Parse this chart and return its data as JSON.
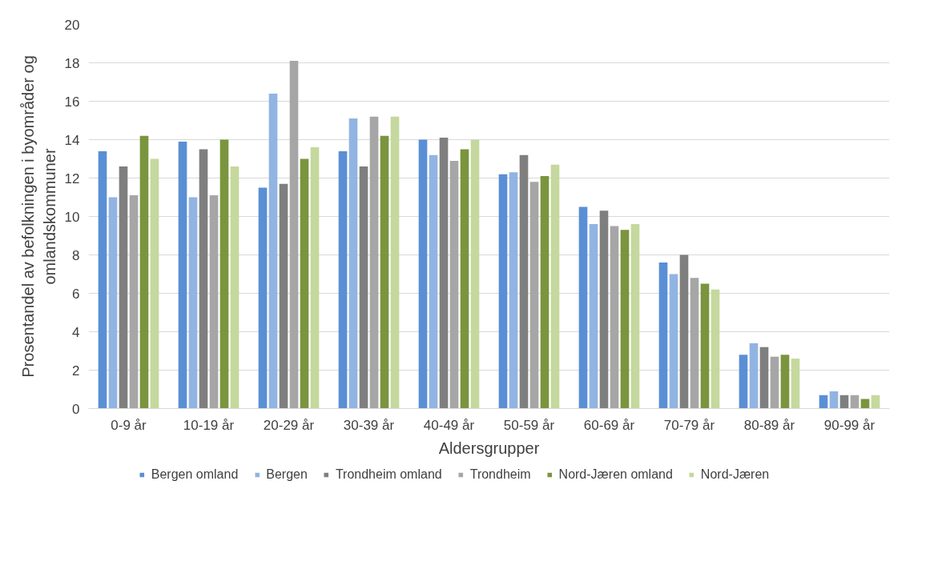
{
  "chart_data": {
    "type": "bar",
    "xlabel": "Aldersgrupper",
    "ylabel": "Prosentandel av befolkningen i byområder og omlandskommuner",
    "categories": [
      "0-9 år",
      "10-19 år",
      "20-29 år",
      "30-39 år",
      "40-49 år",
      "50-59 år",
      "60-69 år",
      "70-79 år",
      "80-89 år",
      "90-99 år"
    ],
    "series": [
      {
        "name": "Bergen omland",
        "color": "#5a8fd5",
        "values": [
          13.4,
          13.9,
          11.5,
          13.4,
          14.0,
          12.2,
          10.5,
          7.6,
          2.8,
          0.7
        ]
      },
      {
        "name": "Bergen",
        "color": "#91b4e2",
        "values": [
          11.0,
          11.0,
          16.4,
          15.1,
          13.2,
          12.3,
          9.6,
          7.0,
          3.4,
          0.9
        ]
      },
      {
        "name": "Trondheim omland",
        "color": "#7f7f7f",
        "values": [
          12.6,
          13.5,
          11.7,
          12.6,
          14.1,
          13.2,
          10.3,
          8.0,
          3.2,
          0.7
        ]
      },
      {
        "name": "Trondheim",
        "color": "#a6a6a6",
        "values": [
          11.1,
          11.1,
          18.1,
          15.2,
          12.9,
          11.8,
          9.5,
          6.8,
          2.7,
          0.7
        ]
      },
      {
        "name": "Nord-Jæren omland",
        "color": "#7a953d",
        "values": [
          14.2,
          14.0,
          13.0,
          14.2,
          13.5,
          12.1,
          9.3,
          6.5,
          2.8,
          0.5
        ]
      },
      {
        "name": "Nord-Jæren",
        "color": "#c5d89d",
        "values": [
          13.0,
          12.6,
          13.6,
          15.2,
          14.0,
          12.7,
          9.6,
          6.2,
          2.6,
          0.7
        ]
      }
    ],
    "ylim": [
      0,
      20
    ],
    "yticks": [
      0,
      2,
      4,
      6,
      8,
      10,
      12,
      14,
      16,
      18,
      20
    ],
    "grid": "y",
    "legend": "bottom"
  }
}
